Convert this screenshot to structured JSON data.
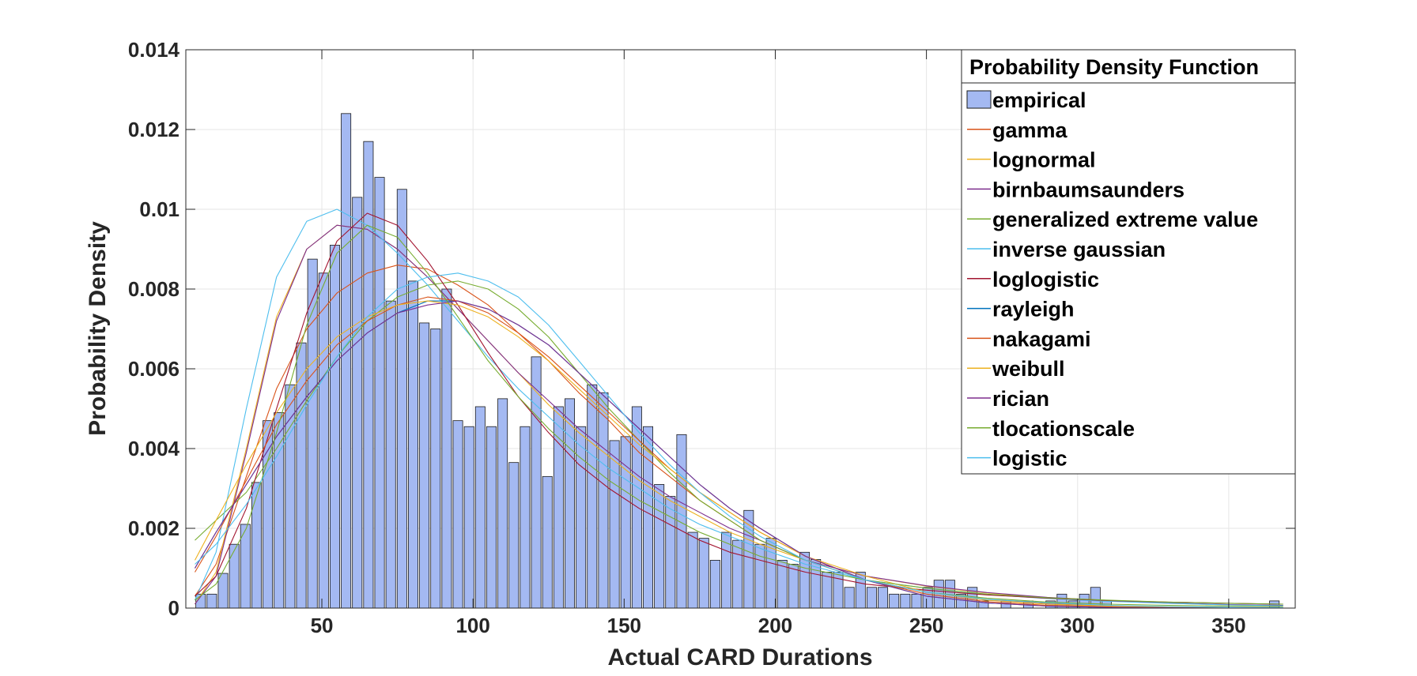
{
  "chart_data": {
    "type": "bar",
    "title": "",
    "xlabel": "Actual CARD Durations",
    "ylabel": "Probability Density",
    "xlim": [
      5,
      372
    ],
    "ylim": [
      0,
      0.014
    ],
    "xticks": [
      50,
      100,
      150,
      200,
      250,
      300,
      350
    ],
    "xtick_labels": [
      "50",
      "100",
      "150",
      "200",
      "250",
      "300",
      "350"
    ],
    "yticks": [
      0,
      0.002,
      0.004,
      0.006,
      0.008,
      0.01,
      0.012,
      0.014
    ],
    "ytick_labels": [
      "0",
      "0.002",
      "0.004",
      "0.006",
      "0.008",
      "0.01",
      "0.012",
      "0.014"
    ],
    "grid": true,
    "legend_title": "Probability Density Function",
    "legend_position": "top-right",
    "histogram": {
      "name": "empirical",
      "color": "#a4b9f2",
      "edge_color": "#1a1a1a",
      "bin_width": 3.7,
      "bins": [
        [
          9.9,
          0.00035
        ],
        [
          13.6,
          0.00035
        ],
        [
          17.3,
          0.00087
        ],
        [
          21.0,
          0.0016
        ],
        [
          24.7,
          0.0021
        ],
        [
          28.4,
          0.00315
        ],
        [
          32.1,
          0.0047
        ],
        [
          35.8,
          0.0049
        ],
        [
          39.5,
          0.0056
        ],
        [
          43.2,
          0.00665
        ],
        [
          46.9,
          0.00875
        ],
        [
          50.6,
          0.0084
        ],
        [
          54.3,
          0.0091
        ],
        [
          58.0,
          0.0124
        ],
        [
          61.7,
          0.0103
        ],
        [
          65.4,
          0.0117
        ],
        [
          69.1,
          0.0108
        ],
        [
          72.8,
          0.0077
        ],
        [
          76.5,
          0.0105
        ],
        [
          80.2,
          0.0082
        ],
        [
          83.9,
          0.00715
        ],
        [
          87.6,
          0.007
        ],
        [
          91.3,
          0.008
        ],
        [
          95.0,
          0.0047
        ],
        [
          98.7,
          0.00455
        ],
        [
          102.4,
          0.00505
        ],
        [
          106.1,
          0.00455
        ],
        [
          109.8,
          0.00525
        ],
        [
          113.5,
          0.00365
        ],
        [
          117.2,
          0.00455
        ],
        [
          120.9,
          0.0063
        ],
        [
          124.6,
          0.0033
        ],
        [
          128.3,
          0.00505
        ],
        [
          132.0,
          0.00525
        ],
        [
          135.7,
          0.00455
        ],
        [
          139.4,
          0.0056
        ],
        [
          143.1,
          0.0054
        ],
        [
          146.8,
          0.0042
        ],
        [
          150.5,
          0.0043
        ],
        [
          154.2,
          0.00505
        ],
        [
          157.9,
          0.00455
        ],
        [
          161.6,
          0.0031
        ],
        [
          165.3,
          0.0028
        ],
        [
          169.0,
          0.00435
        ],
        [
          172.7,
          0.0019
        ],
        [
          176.4,
          0.00175
        ],
        [
          180.1,
          0.0012
        ],
        [
          183.8,
          0.0019
        ],
        [
          187.5,
          0.0017
        ],
        [
          191.2,
          0.00245
        ],
        [
          194.9,
          0.0016
        ],
        [
          198.6,
          0.00175
        ],
        [
          202.3,
          0.0012
        ],
        [
          206.0,
          0.0011
        ],
        [
          209.7,
          0.0014
        ],
        [
          213.4,
          0.00122
        ],
        [
          217.1,
          0.0009
        ],
        [
          220.8,
          0.0009
        ],
        [
          224.5,
          0.00052
        ],
        [
          228.2,
          0.0009
        ],
        [
          231.9,
          0.00052
        ],
        [
          235.6,
          0.00052
        ],
        [
          239.3,
          0.00035
        ],
        [
          243.0,
          0.00035
        ],
        [
          246.7,
          0.00035
        ],
        [
          250.4,
          0.00052
        ],
        [
          254.1,
          0.0007
        ],
        [
          257.8,
          0.0007
        ],
        [
          261.5,
          0.00035
        ],
        [
          265.2,
          0.00052
        ],
        [
          268.9,
          0.00018
        ],
        [
          276.3,
          0.00018
        ],
        [
          283.7,
          0.00018
        ],
        [
          291.1,
          0.00018
        ],
        [
          294.8,
          0.00035
        ],
        [
          298.5,
          0.00018
        ],
        [
          302.2,
          0.00035
        ],
        [
          305.9,
          0.00052
        ],
        [
          309.6,
          0.00018
        ],
        [
          365.1,
          0.00018
        ]
      ]
    },
    "series": [
      {
        "name": "gamma",
        "color": "#d95319",
        "x": [
          8,
          15,
          25,
          35,
          45,
          55,
          65,
          75,
          85,
          95,
          105,
          115,
          125,
          135,
          145,
          155,
          165,
          175,
          185,
          195,
          210,
          230,
          250,
          270,
          290,
          310,
          330,
          350,
          368
        ],
        "values": [
          0.0003,
          0.0011,
          0.0033,
          0.0055,
          0.007,
          0.0079,
          0.0084,
          0.0086,
          0.0085,
          0.0081,
          0.0076,
          0.0069,
          0.0062,
          0.0054,
          0.0047,
          0.0039,
          0.0033,
          0.0027,
          0.0022,
          0.0017,
          0.0012,
          0.0007,
          0.0004,
          0.0002,
          0.00012,
          6e-05,
          3e-05,
          2e-05,
          1e-05
        ]
      },
      {
        "name": "lognormal",
        "color": "#edb120",
        "x": [
          8,
          15,
          25,
          35,
          45,
          55,
          65,
          75,
          85,
          95,
          105,
          115,
          125,
          135,
          145,
          155,
          165,
          175,
          185,
          195,
          210,
          230,
          250,
          270,
          290,
          310,
          330,
          350,
          368
        ],
        "values": [
          0.0001,
          0.0009,
          0.004,
          0.0073,
          0.009,
          0.0096,
          0.0095,
          0.009,
          0.0083,
          0.0075,
          0.0067,
          0.0059,
          0.0051,
          0.0044,
          0.0038,
          0.0032,
          0.0027,
          0.0023,
          0.0019,
          0.0016,
          0.0012,
          0.0008,
          0.00055,
          0.00038,
          0.00026,
          0.00018,
          0.00012,
          8e-05,
          6e-05
        ]
      },
      {
        "name": "birnbaumsaunders",
        "color": "#7e2f8e",
        "x": [
          8,
          15,
          25,
          35,
          45,
          55,
          65,
          75,
          85,
          95,
          105,
          115,
          125,
          135,
          145,
          155,
          165,
          175,
          185,
          195,
          210,
          230,
          250,
          270,
          290,
          310,
          330,
          350,
          368
        ],
        "values": [
          0.0001,
          0.0008,
          0.0039,
          0.0072,
          0.009,
          0.0096,
          0.0095,
          0.009,
          0.0083,
          0.0075,
          0.0067,
          0.0059,
          0.0052,
          0.0045,
          0.0039,
          0.0033,
          0.0028,
          0.0024,
          0.002,
          0.0017,
          0.0012,
          0.0008,
          0.00056,
          0.00039,
          0.00027,
          0.00019,
          0.00013,
          9e-05,
          7e-05
        ]
      },
      {
        "name": "generalized extreme value",
        "color": "#77ac30",
        "x": [
          8,
          15,
          25,
          35,
          45,
          55,
          65,
          75,
          85,
          95,
          105,
          115,
          125,
          135,
          145,
          155,
          165,
          175,
          185,
          195,
          210,
          230,
          250,
          270,
          290,
          310,
          330,
          350,
          368
        ],
        "values": [
          0.0017,
          0.0022,
          0.0029,
          0.004,
          0.0052,
          0.0063,
          0.0072,
          0.0078,
          0.0081,
          0.0082,
          0.008,
          0.0075,
          0.0068,
          0.0059,
          0.005,
          0.0042,
          0.0034,
          0.0027,
          0.0022,
          0.0017,
          0.0012,
          0.0007,
          0.0004,
          0.00025,
          0.00015,
          0.0001,
          7e-05,
          5e-05,
          4e-05
        ]
      },
      {
        "name": "inverse gaussian",
        "color": "#4dbeee",
        "x": [
          8,
          15,
          25,
          35,
          45,
          55,
          65,
          75,
          85,
          95,
          105,
          115,
          125,
          135,
          145,
          155,
          165,
          175,
          185,
          195,
          210,
          230,
          250,
          270,
          290,
          310,
          330,
          350,
          368
        ],
        "values": [
          0.0002,
          0.0014,
          0.005,
          0.0083,
          0.0097,
          0.01,
          0.0096,
          0.0089,
          0.0081,
          0.0072,
          0.0063,
          0.0055,
          0.0048,
          0.0041,
          0.0035,
          0.003,
          0.0025,
          0.0021,
          0.0018,
          0.0015,
          0.0011,
          0.0007,
          0.0005,
          0.00034,
          0.00024,
          0.00017,
          0.00012,
          8e-05,
          6e-05
        ]
      },
      {
        "name": "loglogistic",
        "color": "#a2142f",
        "x": [
          8,
          15,
          25,
          35,
          45,
          55,
          65,
          75,
          85,
          95,
          105,
          115,
          125,
          135,
          145,
          155,
          165,
          175,
          185,
          195,
          210,
          230,
          250,
          270,
          290,
          310,
          330,
          350,
          368
        ],
        "values": [
          0.0003,
          0.0008,
          0.0025,
          0.005,
          0.0074,
          0.0092,
          0.0099,
          0.0096,
          0.0087,
          0.0076,
          0.0064,
          0.0053,
          0.0044,
          0.0036,
          0.003,
          0.0025,
          0.0021,
          0.0017,
          0.0014,
          0.0012,
          0.0009,
          0.0006,
          0.00045,
          0.00033,
          0.00025,
          0.00019,
          0.00015,
          0.00012,
          0.0001
        ]
      },
      {
        "name": "rayleigh",
        "color": "#0072bd",
        "x": [
          8,
          15,
          25,
          35,
          45,
          55,
          65,
          75,
          85,
          95,
          105,
          115,
          125,
          135,
          145,
          155,
          165,
          175,
          185,
          195,
          210,
          230,
          250,
          270,
          290,
          310,
          330,
          350,
          368
        ],
        "values": [
          0.001,
          0.0019,
          0.0031,
          0.0043,
          0.0053,
          0.0062,
          0.0069,
          0.0074,
          0.0077,
          0.0077,
          0.0075,
          0.0071,
          0.0066,
          0.0059,
          0.0052,
          0.0045,
          0.0038,
          0.0031,
          0.0025,
          0.002,
          0.0013,
          0.0007,
          0.0003,
          0.00013,
          5e-05,
          2e-05,
          1e-05,
          0,
          0
        ]
      },
      {
        "name": "nakagami",
        "color": "#d95319",
        "x": [
          8,
          15,
          25,
          35,
          45,
          55,
          65,
          75,
          85,
          95,
          105,
          115,
          125,
          135,
          145,
          155,
          165,
          175,
          185,
          195,
          210,
          230,
          250,
          270,
          290,
          310,
          330,
          350,
          368
        ],
        "values": [
          0.0009,
          0.0018,
          0.0032,
          0.0046,
          0.0057,
          0.0066,
          0.0072,
          0.0076,
          0.0078,
          0.0077,
          0.0074,
          0.0069,
          0.0063,
          0.0056,
          0.0049,
          0.0042,
          0.0035,
          0.0029,
          0.0024,
          0.0019,
          0.0013,
          0.0007,
          0.00035,
          0.00016,
          7e-05,
          3e-05,
          1e-05,
          0,
          0
        ]
      },
      {
        "name": "weibull",
        "color": "#edb120",
        "x": [
          8,
          15,
          25,
          35,
          45,
          55,
          65,
          75,
          85,
          95,
          105,
          115,
          125,
          135,
          145,
          155,
          165,
          175,
          185,
          195,
          210,
          230,
          250,
          270,
          290,
          310,
          330,
          350,
          368
        ],
        "values": [
          0.0012,
          0.0022,
          0.0036,
          0.0049,
          0.006,
          0.0068,
          0.0073,
          0.0076,
          0.0077,
          0.0076,
          0.0073,
          0.0068,
          0.0062,
          0.0055,
          0.0048,
          0.0041,
          0.0035,
          0.0029,
          0.0024,
          0.0019,
          0.0013,
          0.0008,
          0.0004,
          0.0002,
          0.0001,
          5e-05,
          2e-05,
          1e-05,
          0
        ]
      },
      {
        "name": "rician",
        "color": "#7e2f8e",
        "x": [
          8,
          15,
          25,
          35,
          45,
          55,
          65,
          75,
          85,
          95,
          105,
          115,
          125,
          135,
          145,
          155,
          165,
          175,
          185,
          195,
          210,
          230,
          250,
          270,
          290,
          310,
          330,
          350,
          368
        ],
        "values": [
          0.001,
          0.0019,
          0.0031,
          0.0043,
          0.0053,
          0.0062,
          0.0069,
          0.0074,
          0.0076,
          0.0077,
          0.0075,
          0.0071,
          0.0066,
          0.0059,
          0.0052,
          0.0045,
          0.0038,
          0.0031,
          0.0025,
          0.002,
          0.0013,
          0.0007,
          0.0003,
          0.00013,
          5e-05,
          2e-05,
          1e-05,
          0,
          0
        ]
      },
      {
        "name": "tlocationscale",
        "color": "#77ac30",
        "x": [
          8,
          15,
          25,
          35,
          45,
          55,
          65,
          75,
          85,
          95,
          105,
          115,
          125,
          135,
          145,
          155,
          165,
          175,
          185,
          195,
          210,
          230,
          250,
          270,
          290,
          310,
          330,
          350,
          368
        ],
        "values": [
          0.0002,
          0.0006,
          0.002,
          0.0044,
          0.0071,
          0.0089,
          0.0096,
          0.0093,
          0.0084,
          0.0073,
          0.0062,
          0.0053,
          0.0045,
          0.0038,
          0.0032,
          0.0027,
          0.0023,
          0.0019,
          0.0016,
          0.0013,
          0.001,
          0.0007,
          0.0005,
          0.00035,
          0.00026,
          0.0002,
          0.00015,
          0.00012,
          0.0001
        ]
      },
      {
        "name": "logistic",
        "color": "#4dbeee",
        "x": [
          8,
          15,
          25,
          35,
          45,
          55,
          65,
          75,
          85,
          95,
          105,
          115,
          125,
          135,
          145,
          155,
          165,
          175,
          185,
          195,
          210,
          230,
          250,
          270,
          290,
          310,
          330,
          350,
          368
        ],
        "values": [
          0.0011,
          0.0016,
          0.0026,
          0.0038,
          0.0051,
          0.0063,
          0.0073,
          0.008,
          0.0083,
          0.0084,
          0.0082,
          0.0078,
          0.0071,
          0.0062,
          0.0053,
          0.0044,
          0.0036,
          0.0029,
          0.0023,
          0.0018,
          0.0012,
          0.0007,
          0.0004,
          0.00022,
          0.00013,
          7e-05,
          4e-05,
          2e-05,
          1e-05
        ]
      }
    ]
  }
}
